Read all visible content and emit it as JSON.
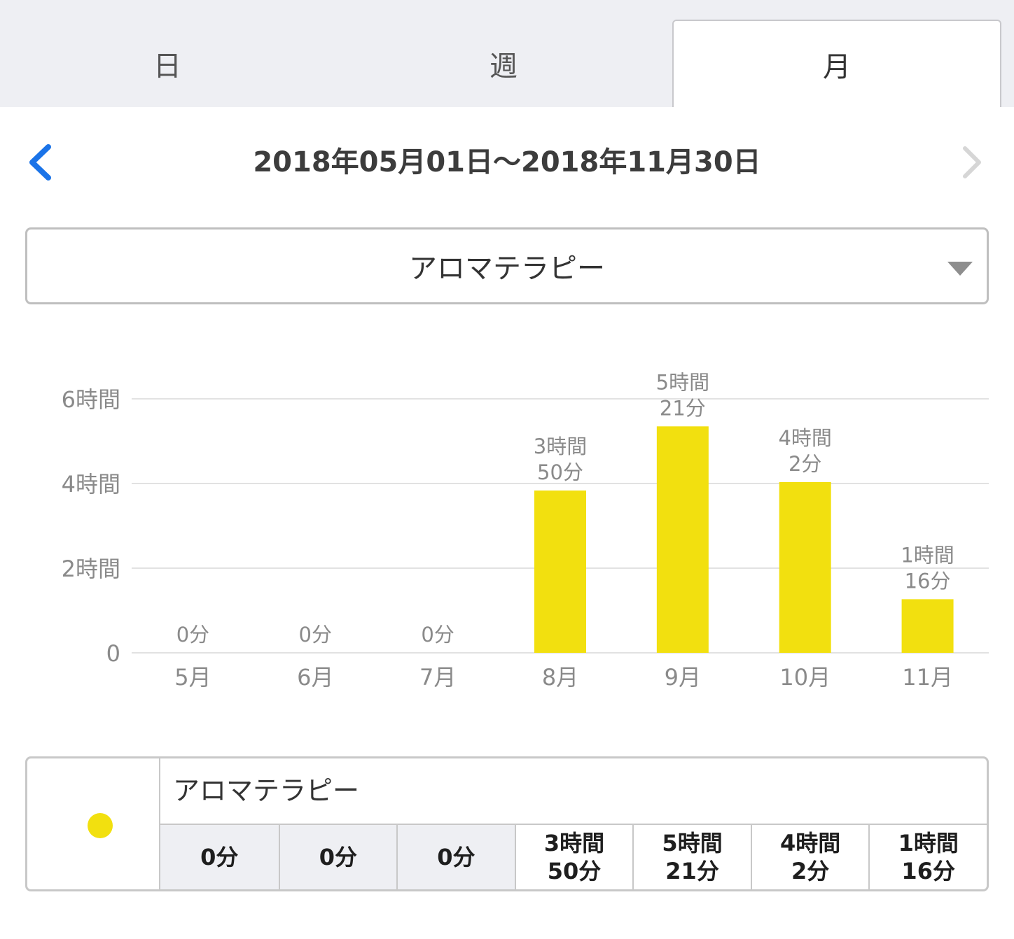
{
  "tabs": [
    {
      "label": "日",
      "active": false
    },
    {
      "label": "週",
      "active": false
    },
    {
      "label": "月",
      "active": true
    }
  ],
  "period": {
    "range": "2018年05月01日～2018年11月30日"
  },
  "category_select": {
    "value": "アロマテラピー"
  },
  "colors": {
    "bar": "#f2e00f",
    "grid": "#e2e2e2",
    "tick_text": "#8a8a8a",
    "nav_active": "#1a73e8",
    "nav_disabled": "#d6d6d6"
  },
  "chart_data": {
    "type": "bar",
    "categories": [
      "5月",
      "6月",
      "7月",
      "8月",
      "9月",
      "10月",
      "11月"
    ],
    "values": [
      0,
      0,
      0,
      230,
      321,
      242,
      76
    ],
    "value_unit": "minutes",
    "data_labels": [
      [
        "0分"
      ],
      [
        "0分"
      ],
      [
        "0分"
      ],
      [
        "3時間",
        "50分"
      ],
      [
        "5時間",
        "21分"
      ],
      [
        "4時間",
        "2分"
      ],
      [
        "1時間",
        "16分"
      ]
    ],
    "y_ticks": [
      {
        "value": 0,
        "label": "0"
      },
      {
        "value": 120,
        "label": "2時間"
      },
      {
        "value": 240,
        "label": "4時間"
      },
      {
        "value": 360,
        "label": "6時間"
      }
    ],
    "ylim": [
      0,
      360
    ],
    "grid": true
  },
  "legend": {
    "name": "アロマテラピー",
    "cells": [
      [
        "0分"
      ],
      [
        "0分"
      ],
      [
        "0分"
      ],
      [
        "3時間",
        "50分"
      ],
      [
        "5時間",
        "21分"
      ],
      [
        "4時間",
        "2分"
      ],
      [
        "1時間",
        "16分"
      ]
    ]
  }
}
